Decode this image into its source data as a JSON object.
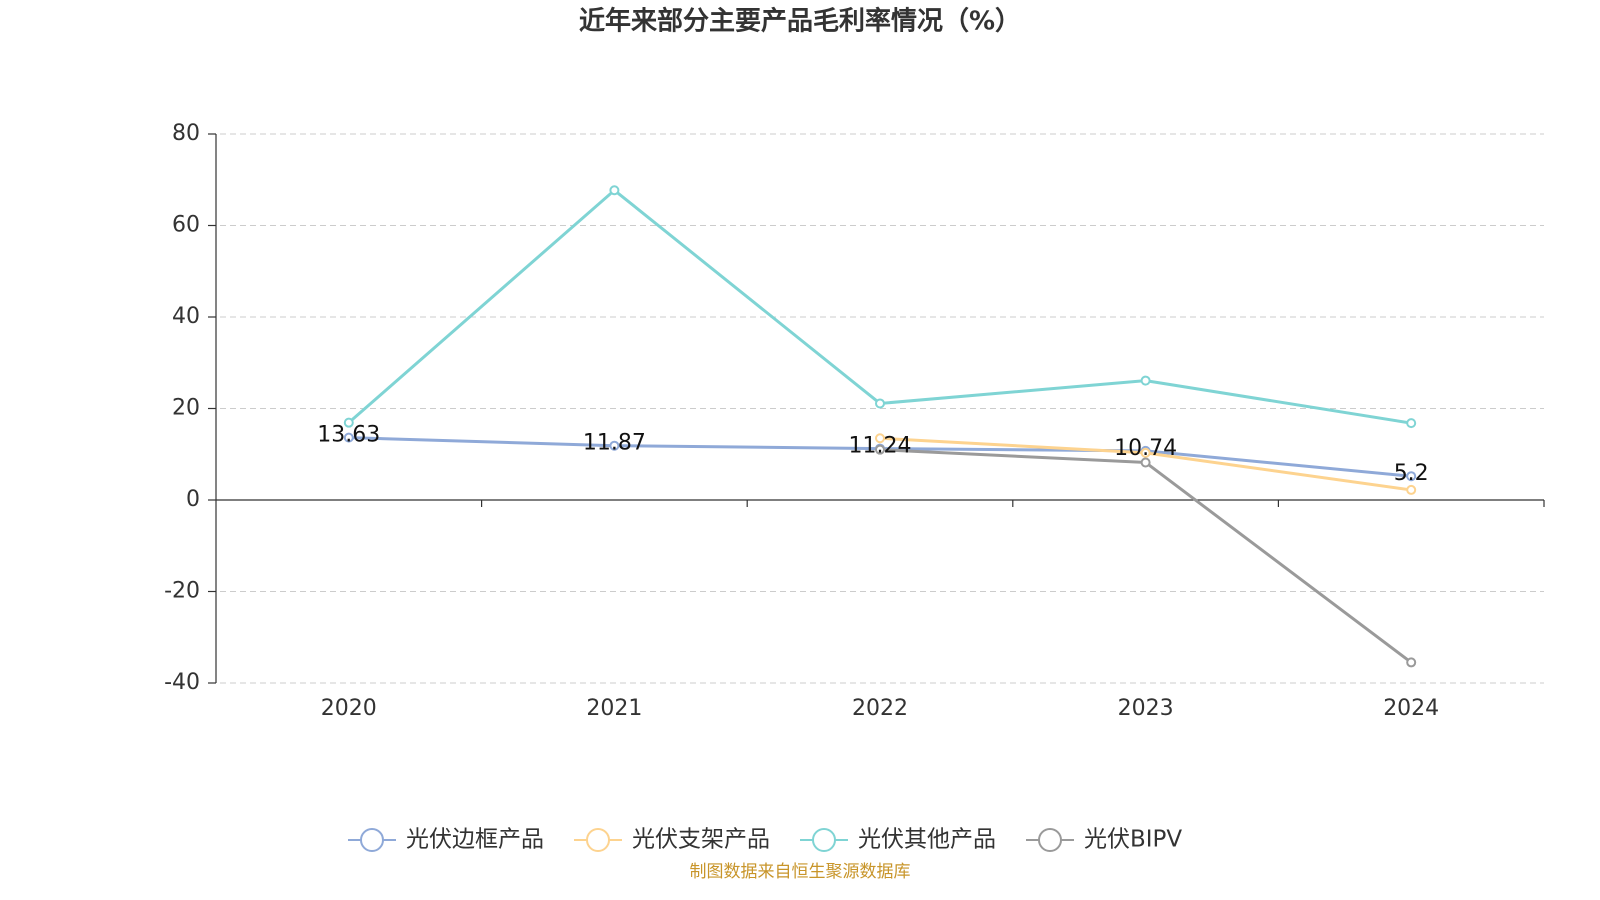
{
  "chart_data": {
    "type": "line",
    "title": "近年来部分主要产品毛利率情况（%）",
    "categories": [
      "2020",
      "2021",
      "2022",
      "2023",
      "2024"
    ],
    "series": [
      {
        "name": "光伏边框产品",
        "color": "#8fa9d8",
        "values": [
          13.63,
          11.87,
          11.24,
          10.74,
          5.2
        ],
        "data_labels": true
      },
      {
        "name": "光伏支架产品",
        "color": "#fdd38f",
        "values": [
          null,
          null,
          13.5,
          10.3,
          2.2
        ]
      },
      {
        "name": "光伏其他产品",
        "color": "#7fd4d4",
        "values": [
          16.9,
          67.7,
          21.1,
          26.1,
          16.8
        ]
      },
      {
        "name": "光伏BIPV",
        "color": "#9a9a9a",
        "values": [
          null,
          null,
          11.0,
          8.2,
          -35.5
        ]
      }
    ],
    "ylim": [
      -40,
      80
    ],
    "yticks": [
      -40,
      -20,
      0,
      20,
      40,
      60,
      80
    ],
    "grid": true,
    "legend": "bottom",
    "source": "制图数据来自恒生聚源数据库"
  }
}
